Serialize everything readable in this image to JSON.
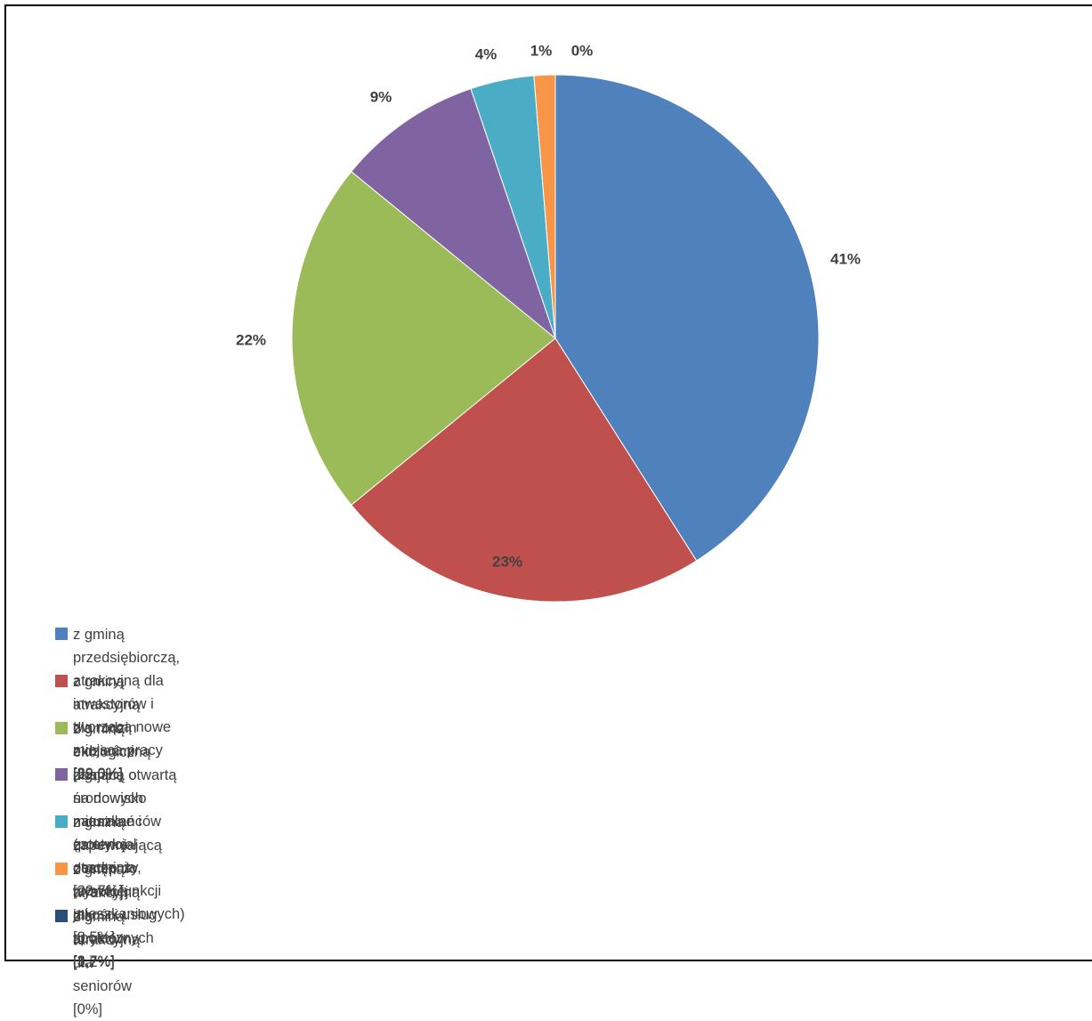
{
  "chart_data": {
    "type": "pie",
    "categories": [
      "z gminą przedsiębiorczą, atrakcyjną dla inwestorów i tworzącą nowe miejsca pracy [39,0%]",
      "z gminą atrakcyjną dla rodzin z dziećmi [22,0%]",
      "z gminą ekologiczną dbającą o środowisko naturalne i estetykę otoczenia [20,7%]",
      "z gminą otwartą na nowych mieszkańców (potencjał osadniczy, rozwój funkcji mieszkaniowych) [8,5%]",
      "z gminą zapewniającą dostęp do wysokiej jakości usług społecznych [3,7%]",
      "z gminą atrakcyjną dla turystów [1,2%]",
      "z gminą atrakcyjną dla seniorów [0%]"
    ],
    "values": [
      41.0,
      23.1,
      21.8,
      8.9,
      3.9,
      1.3,
      0
    ],
    "value_labels": [
      "41%",
      "23%",
      "22%",
      "9%",
      "4%",
      "1%",
      "0%"
    ],
    "colors": [
      "#4f81bd",
      "#c0504d",
      "#9bbb59",
      "#8064a2",
      "#4bacc6",
      "#f79646",
      "#2c4d75"
    ]
  }
}
